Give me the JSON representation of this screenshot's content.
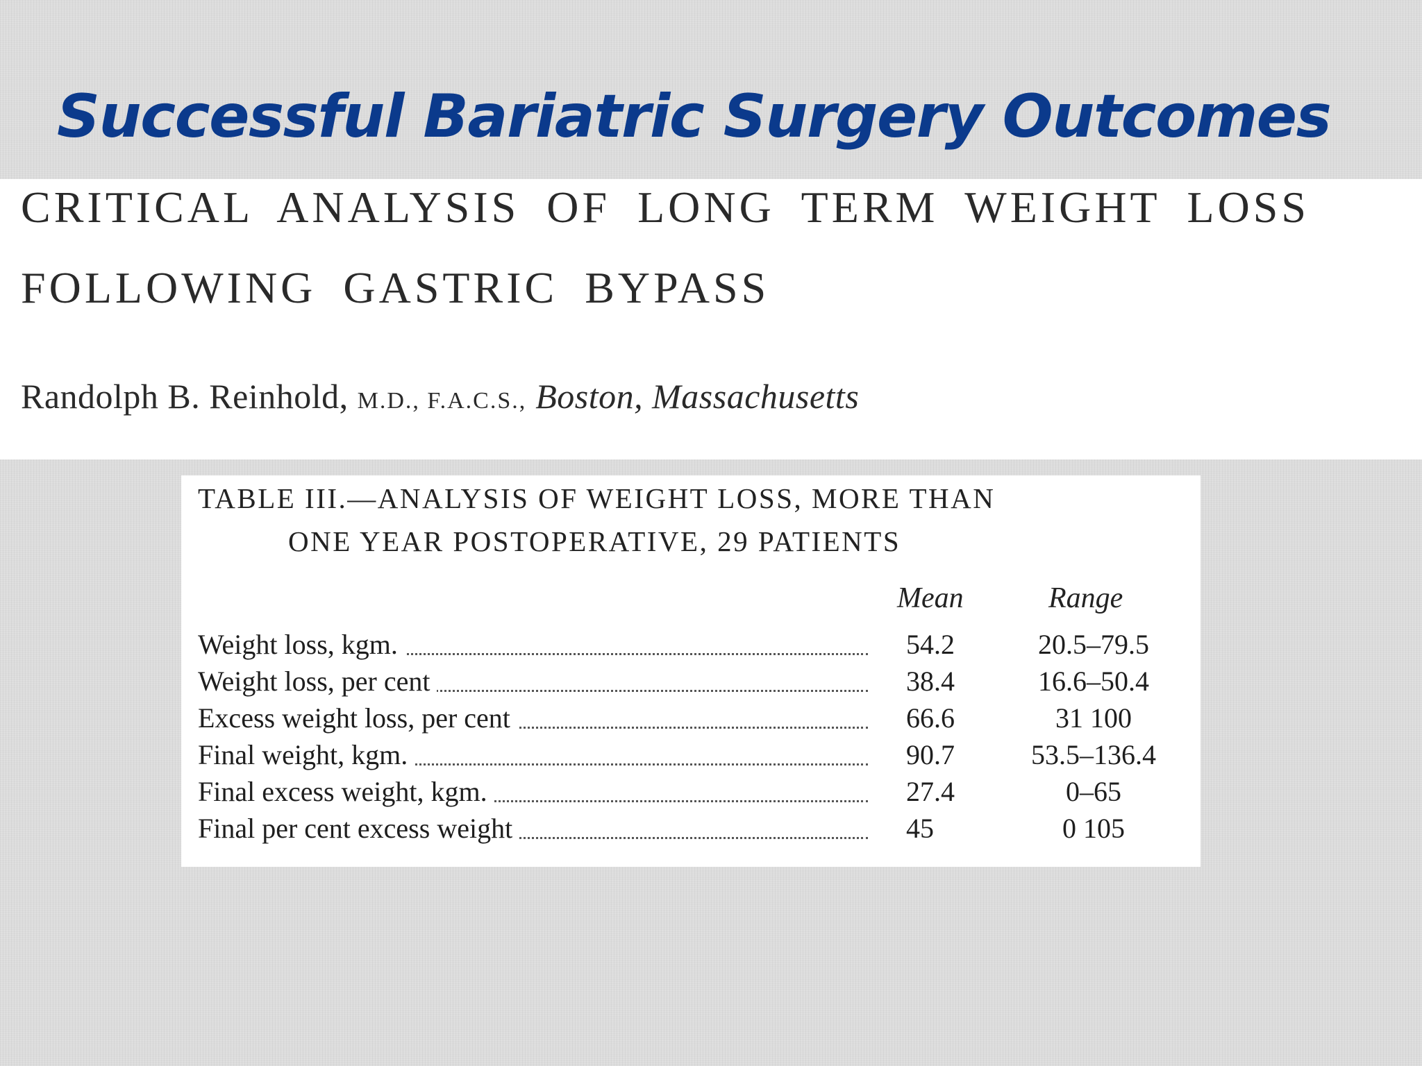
{
  "slide": {
    "title": "Successful Bariatric Surgery Outcomes"
  },
  "paper": {
    "title_line1": "CRITICAL ANALYSIS OF LONG TERM WEIGHT LOSS",
    "title_line2": "FOLLOWING GASTRIC BYPASS",
    "author": "Randolph B. Reinhold,",
    "credentials": "M.D., F.A.C.S.,",
    "location": "Boston, Massachusetts"
  },
  "table": {
    "caption_line1": "TABLE III.—ANALYSIS OF WEIGHT LOSS, MORE THAN",
    "caption_line2": "ONE YEAR POSTOPERATIVE, 29 PATIENTS",
    "columns": {
      "mean": "Mean",
      "range": "Range"
    },
    "rows": [
      {
        "label": "Weight loss, kgm.",
        "mean": "54.2",
        "range": "20.5–79.5"
      },
      {
        "label": "Weight loss, per cent",
        "mean": "38.4",
        "range": "16.6–50.4"
      },
      {
        "label": "Excess weight loss, per cent",
        "mean": "66.6",
        "range": "31 100"
      },
      {
        "label": "Final weight, kgm.",
        "mean": "90.7",
        "range": "53.5–136.4"
      },
      {
        "label": "Final excess weight, kgm.",
        "mean": "27.4",
        "range": "0–65"
      },
      {
        "label": "Final per cent excess weight",
        "mean": "45",
        "range": "0 105"
      }
    ]
  }
}
